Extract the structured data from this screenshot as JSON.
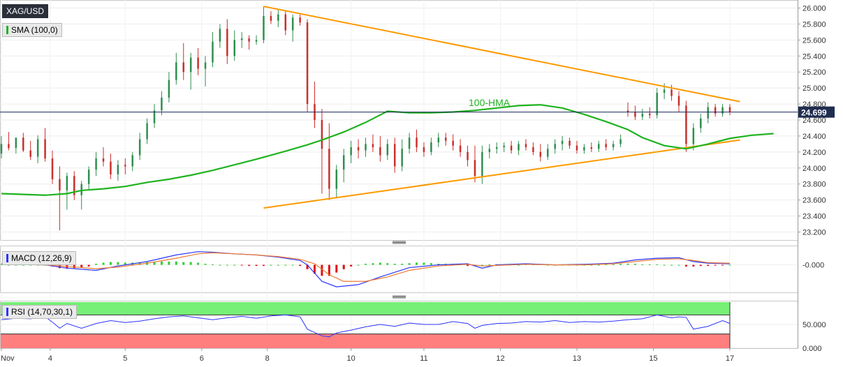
{
  "instrument": "XAG/USD",
  "price_tag": "24.699",
  "indicators": {
    "sma_label": "SMA (100,0)",
    "hma_annotation": "100-HMA",
    "macd_label": "MACD (12,26,9)",
    "rsi_label": "RSI (14,70,30,1)"
  },
  "colors": {
    "up": "#2f8f4f",
    "down": "#c9302c",
    "sma": "#1fb31f",
    "trendline": "#ff9900",
    "macd_line": "#2b34ff",
    "signal_line": "#f07830",
    "hist_pos": "#2ed12e",
    "hist_neg": "#e01010",
    "rsi_line": "#2b34ff",
    "rsi_over": "#77f077",
    "rsi_under": "#ff7f7f",
    "price_line": "#1a2a5a"
  },
  "chart_data": [
    {
      "type": "candlestick",
      "title": "XAG/USD",
      "x_ticks": [
        "Nov",
        "4",
        "5",
        "6",
        "8",
        "10",
        "11",
        "12",
        "13",
        "15",
        "17"
      ],
      "y_ticks": [
        "26.000",
        "25.800",
        "25.600",
        "25.400",
        "25.200",
        "25.000",
        "24.800",
        "24.600",
        "24.400",
        "24.200",
        "24.000",
        "23.800",
        "23.600",
        "23.400",
        "23.200"
      ],
      "ylim": [
        23.1,
        26.1
      ],
      "last_price": 24.699,
      "sma_100": {
        "name": "SMA (100,0)",
        "t": [
          0,
          3,
          6,
          9,
          11,
          14,
          17,
          20,
          23,
          26,
          29,
          32,
          35,
          39,
          42,
          44,
          47,
          50,
          53,
          56,
          59,
          62,
          65,
          68,
          71,
          74,
          77,
          80,
          83,
          86,
          88,
          91,
          94,
          97,
          100,
          103,
          106
        ],
        "values": [
          23.68,
          23.67,
          23.66,
          23.68,
          23.72,
          23.74,
          23.77,
          23.82,
          23.86,
          23.91,
          23.97,
          24.04,
          24.11,
          24.21,
          24.29,
          24.35,
          24.45,
          24.57,
          24.71,
          24.69,
          24.69,
          24.7,
          24.72,
          24.75,
          24.78,
          24.79,
          24.75,
          24.67,
          24.58,
          24.48,
          24.38,
          24.28,
          24.24,
          24.3,
          24.37,
          24.41,
          24.43
        ]
      },
      "trendlines": [
        {
          "t": [
            36,
            101
          ],
          "values": [
            26.02,
            24.83
          ]
        },
        {
          "t": [
            36,
            101
          ],
          "values": [
            23.5,
            24.35
          ]
        }
      ],
      "candles": [
        [
          0,
          24.18,
          24.4,
          24.12,
          24.3
        ],
        [
          1,
          24.3,
          24.45,
          24.22,
          24.25
        ],
        [
          2,
          24.25,
          24.36,
          24.18,
          24.38
        ],
        [
          3,
          24.38,
          24.44,
          24.2,
          24.22
        ],
        [
          4,
          24.22,
          24.34,
          24.1,
          24.14
        ],
        [
          5,
          24.14,
          24.41,
          24.06,
          24.36
        ],
        [
          6,
          24.36,
          24.5,
          24.08,
          24.12
        ],
        [
          7,
          24.12,
          24.22,
          23.8,
          23.86
        ],
        [
          8,
          23.86,
          24.02,
          23.22,
          23.72
        ],
        [
          9,
          23.72,
          23.94,
          23.48,
          23.9
        ],
        [
          10,
          23.9,
          23.96,
          23.6,
          23.66
        ],
        [
          11,
          23.66,
          23.84,
          23.48,
          23.8
        ],
        [
          12,
          23.8,
          24.02,
          23.72,
          23.98
        ],
        [
          13,
          23.98,
          24.2,
          23.9,
          24.12
        ],
        [
          14,
          24.12,
          24.26,
          24.02,
          24.08
        ],
        [
          15,
          24.08,
          24.18,
          23.86,
          23.92
        ],
        [
          16,
          23.92,
          24.1,
          23.84,
          24.04
        ],
        [
          17,
          24.04,
          24.12,
          23.92,
          24.02
        ],
        [
          18,
          24.02,
          24.2,
          23.96,
          24.16
        ],
        [
          19,
          24.16,
          24.44,
          24.1,
          24.36
        ],
        [
          20,
          24.36,
          24.62,
          24.3,
          24.56
        ],
        [
          21,
          24.56,
          24.8,
          24.5,
          24.72
        ],
        [
          22,
          24.72,
          24.96,
          24.66,
          24.88
        ],
        [
          23,
          24.88,
          25.2,
          24.82,
          25.1
        ],
        [
          24,
          25.1,
          25.44,
          25.04,
          25.32
        ],
        [
          25,
          25.32,
          25.56,
          25.1,
          25.2
        ],
        [
          26,
          25.2,
          25.44,
          24.98,
          25.38
        ],
        [
          27,
          25.38,
          25.5,
          25.16,
          25.24
        ],
        [
          28,
          25.24,
          25.4,
          25.02,
          25.32
        ],
        [
          29,
          25.32,
          25.7,
          25.26,
          25.58
        ],
        [
          30,
          25.58,
          25.8,
          25.5,
          25.74
        ],
        [
          31,
          25.74,
          25.86,
          25.3,
          25.4
        ],
        [
          32,
          25.4,
          25.72,
          25.34,
          25.6
        ],
        [
          33,
          25.6,
          25.7,
          25.5,
          25.62
        ],
        [
          34,
          25.62,
          25.66,
          25.48,
          25.58
        ],
        [
          35,
          25.58,
          25.66,
          25.54,
          25.6
        ],
        [
          36,
          25.6,
          26.02,
          25.56,
          25.9
        ],
        [
          37,
          25.9,
          25.96,
          25.8,
          25.84
        ],
        [
          38,
          25.84,
          25.98,
          25.76,
          25.92
        ],
        [
          39,
          25.92,
          25.96,
          25.66,
          25.72
        ],
        [
          40,
          25.72,
          25.92,
          25.58,
          25.88
        ],
        [
          41,
          25.88,
          25.92,
          25.78,
          25.82
        ],
        [
          42,
          25.82,
          25.86,
          24.7,
          24.8
        ],
        [
          43,
          24.8,
          25.08,
          24.5,
          24.6
        ],
        [
          44,
          24.6,
          24.74,
          23.68,
          24.24
        ],
        [
          45,
          24.24,
          24.56,
          23.6,
          23.74
        ],
        [
          46,
          23.74,
          24.04,
          23.62,
          23.98
        ],
        [
          47,
          23.98,
          24.24,
          23.82,
          24.16
        ],
        [
          48,
          24.16,
          24.34,
          24.06,
          24.26
        ],
        [
          49,
          24.26,
          24.36,
          24.12,
          24.22
        ],
        [
          50,
          24.22,
          24.38,
          24.14,
          24.3
        ],
        [
          51,
          24.3,
          24.42,
          24.2,
          24.26
        ],
        [
          52,
          24.26,
          24.4,
          24.08,
          24.16
        ],
        [
          53,
          24.16,
          24.36,
          24.1,
          24.3
        ],
        [
          54,
          24.3,
          24.38,
          23.94,
          24.02
        ],
        [
          55,
          24.02,
          24.36,
          23.96,
          24.24
        ],
        [
          56,
          24.24,
          24.44,
          24.18,
          24.38
        ],
        [
          57,
          24.38,
          24.48,
          24.2,
          24.26
        ],
        [
          58,
          24.26,
          24.32,
          24.14,
          24.2
        ],
        [
          59,
          24.2,
          24.38,
          24.16,
          24.32
        ],
        [
          60,
          24.32,
          24.44,
          24.26,
          24.38
        ],
        [
          61,
          24.38,
          24.44,
          24.28,
          24.34
        ],
        [
          62,
          24.34,
          24.42,
          24.22,
          24.28
        ],
        [
          63,
          24.28,
          24.36,
          24.14,
          24.2
        ],
        [
          64,
          24.2,
          24.28,
          24.02,
          24.1
        ],
        [
          65,
          24.1,
          24.28,
          23.82,
          23.9
        ],
        [
          66,
          23.9,
          24.28,
          23.8,
          24.2
        ],
        [
          67,
          24.2,
          24.3,
          24.12,
          24.24
        ],
        [
          68,
          24.24,
          24.32,
          24.18,
          24.26
        ],
        [
          69,
          24.26,
          24.32,
          24.2,
          24.28
        ],
        [
          70,
          24.28,
          24.34,
          24.18,
          24.22
        ],
        [
          71,
          24.22,
          24.34,
          24.16,
          24.3
        ],
        [
          72,
          24.3,
          24.36,
          24.22,
          24.26
        ],
        [
          73,
          24.26,
          24.32,
          24.16,
          24.2
        ],
        [
          74,
          24.2,
          24.3,
          24.08,
          24.14
        ],
        [
          75,
          24.14,
          24.3,
          24.1,
          24.24
        ],
        [
          76,
          24.24,
          24.36,
          24.18,
          24.3
        ],
        [
          77,
          24.3,
          24.4,
          24.22,
          24.34
        ],
        [
          78,
          24.34,
          24.38,
          24.24,
          24.28
        ],
        [
          79,
          24.28,
          24.34,
          24.18,
          24.22
        ],
        [
          80,
          24.22,
          24.3,
          24.18,
          24.26
        ],
        [
          81,
          24.26,
          24.32,
          24.2,
          24.24
        ],
        [
          82,
          24.24,
          24.34,
          24.2,
          24.3
        ],
        [
          83,
          24.3,
          24.36,
          24.22,
          24.26
        ],
        [
          84,
          24.26,
          24.34,
          24.22,
          24.3
        ],
        [
          85,
          24.3,
          24.42,
          24.26,
          24.36
        ],
        [
          86,
          24.72,
          24.82,
          24.64,
          24.7
        ],
        [
          87,
          24.7,
          24.78,
          24.6,
          24.64
        ],
        [
          88,
          24.64,
          24.74,
          24.6,
          24.68
        ],
        [
          89,
          24.68,
          24.76,
          24.62,
          24.66
        ],
        [
          90,
          24.66,
          25.0,
          24.62,
          24.94
        ],
        [
          91,
          24.94,
          25.06,
          24.86,
          24.98
        ],
        [
          92,
          24.98,
          25.04,
          24.84,
          24.9
        ],
        [
          93,
          24.9,
          24.96,
          24.7,
          24.78
        ],
        [
          94,
          24.78,
          24.84,
          24.2,
          24.3
        ],
        [
          95,
          24.3,
          24.56,
          24.22,
          24.5
        ],
        [
          96,
          24.5,
          24.68,
          24.44,
          24.62
        ],
        [
          97,
          24.62,
          24.82,
          24.56,
          24.76
        ],
        [
          98,
          24.76,
          24.8,
          24.64,
          24.68
        ],
        [
          99,
          24.68,
          24.8,
          24.64,
          24.76
        ],
        [
          100,
          24.76,
          24.8,
          24.66,
          24.7
        ]
      ]
    },
    {
      "type": "line",
      "title": "MACD (12,26,9)",
      "y_ticks": [
        "-0.000"
      ],
      "ylim": [
        -0.5,
        0.35
      ],
      "series": [
        {
          "name": "MACD",
          "t": [
            0,
            6,
            9,
            13,
            16,
            20,
            24,
            27,
            29,
            32,
            35,
            38,
            41,
            42,
            44,
            46,
            49,
            52,
            56,
            60,
            64,
            66,
            68,
            72,
            76,
            80,
            84,
            87,
            90,
            93,
            95,
            97,
            100
          ],
          "values": [
            0.02,
            0.0,
            -0.06,
            -0.1,
            -0.02,
            0.06,
            0.18,
            0.24,
            0.23,
            0.2,
            0.18,
            0.14,
            0.08,
            0.0,
            -0.3,
            -0.4,
            -0.36,
            -0.22,
            -0.05,
            0.0,
            0.02,
            -0.06,
            0.0,
            0.02,
            0.0,
            0.01,
            0.03,
            0.09,
            0.12,
            0.13,
            0.06,
            0.03,
            0.02
          ]
        },
        {
          "name": "Signal",
          "t": [
            0,
            6,
            9,
            13,
            16,
            20,
            24,
            27,
            29,
            32,
            35,
            38,
            41,
            43,
            45,
            47,
            50,
            53,
            56,
            60,
            64,
            66,
            68,
            72,
            76,
            80,
            84,
            87,
            90,
            93,
            95,
            97,
            100
          ],
          "values": [
            0.01,
            0.0,
            -0.03,
            -0.07,
            -0.04,
            0.03,
            0.12,
            0.2,
            0.22,
            0.2,
            0.18,
            0.15,
            0.1,
            0.02,
            -0.18,
            -0.3,
            -0.3,
            -0.22,
            -0.1,
            -0.02,
            0.01,
            -0.02,
            -0.01,
            0.01,
            0.0,
            0.0,
            0.02,
            0.06,
            0.1,
            0.11,
            0.08,
            0.04,
            0.03
          ]
        }
      ],
      "histogram": [
        0.01,
        0.0,
        0.0,
        0.0,
        0.0,
        0.0,
        0.0,
        -0.03,
        -0.06,
        -0.07,
        -0.06,
        -0.05,
        -0.03,
        0.02,
        0.04,
        0.05,
        0.05,
        0.04,
        0.04,
        0.04,
        0.05,
        0.05,
        0.06,
        0.06,
        0.06,
        0.05,
        0.05,
        0.04,
        0.02,
        0.01,
        0.0,
        0.0,
        0.0,
        -0.01,
        -0.02,
        -0.02,
        -0.02,
        0.0,
        0.0,
        0.0,
        0.0,
        -0.02,
        -0.08,
        -0.16,
        -0.2,
        -0.2,
        -0.14,
        -0.08,
        -0.03,
        0.0,
        0.02,
        0.03,
        0.04,
        0.03,
        0.02,
        0.02,
        0.03,
        0.04,
        0.04,
        0.03,
        0.02,
        0.02,
        0.02,
        0.02,
        -0.02,
        -0.02,
        0.0,
        0.01,
        0.01,
        0.01,
        0.01,
        0.0,
        0.01,
        0.01,
        0.01,
        0.0,
        0.0,
        0.0,
        0.0,
        0.0,
        0.0,
        0.0,
        0.0,
        0.01,
        0.01,
        0.02,
        0.02,
        0.02,
        0.01,
        0.01,
        0.01,
        0.0,
        0.0,
        0.0,
        -0.03,
        -0.03,
        -0.02,
        -0.02,
        -0.01,
        -0.01,
        0.0
      ]
    },
    {
      "type": "line",
      "title": "RSI (14,70,30,1)",
      "y_ticks": [
        "50.000",
        "0.000"
      ],
      "ylim": [
        0,
        100
      ],
      "bands": {
        "overbought": 70,
        "oversold": 30
      },
      "series": [
        {
          "name": "RSI",
          "t": [
            0,
            2,
            4,
            6,
            7,
            8,
            9,
            11,
            13,
            15,
            17,
            19,
            21,
            23,
            25,
            27,
            29,
            31,
            33,
            35,
            37,
            39,
            41,
            42,
            44,
            45,
            46,
            48,
            50,
            52,
            54,
            56,
            58,
            60,
            62,
            64,
            65,
            66,
            68,
            70,
            72,
            74,
            76,
            78,
            80,
            82,
            84,
            86,
            88,
            90,
            92,
            93,
            94,
            95,
            97,
            99,
            100
          ],
          "values": [
            60,
            63,
            62,
            66,
            55,
            42,
            52,
            42,
            52,
            58,
            54,
            57,
            62,
            66,
            68,
            64,
            60,
            64,
            67,
            63,
            68,
            70,
            66,
            40,
            26,
            24,
            32,
            38,
            45,
            50,
            46,
            53,
            50,
            50,
            56,
            52,
            42,
            48,
            52,
            53,
            56,
            55,
            58,
            54,
            56,
            55,
            57,
            60,
            62,
            70,
            64,
            66,
            65,
            40,
            46,
            58,
            52
          ]
        }
      ]
    }
  ]
}
